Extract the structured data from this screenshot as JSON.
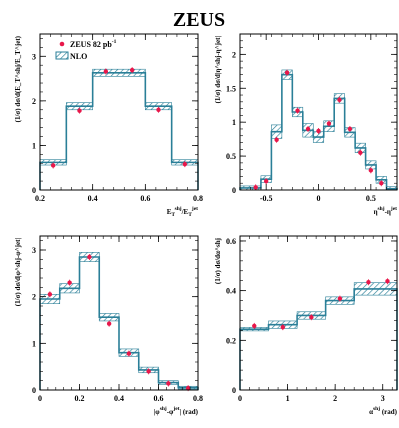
{
  "title": "ZEUS",
  "legend": {
    "data_label": "ZEUS 82 pb",
    "data_sup": "-1",
    "nlo_label": "NLO"
  },
  "colors": {
    "nlo_line": "#2a7f98",
    "nlo_hatch": "#2a7f98",
    "data_marker": "#e8174a",
    "axis": "#000000"
  },
  "chart_data": [
    {
      "type": "step-with-points",
      "xlabel": {
        "main": "E",
        "sub1": "T",
        "sup1": "shj",
        "slash": "/E",
        "sub2": "T",
        "sup2": "jet"
      },
      "ylabel": "(1/σ) dσ/d(E_T^shj/E_T^jet)",
      "xlim": [
        0.2,
        0.8
      ],
      "ylim": [
        0,
        3.5
      ],
      "xticks": [
        0.2,
        0.4,
        0.6,
        0.8
      ],
      "yticks": [
        0,
        1,
        2,
        3
      ],
      "xtick_labels": [
        "0.2",
        "0.4",
        "0.6",
        "0.8"
      ],
      "ytick_labels": [
        "0",
        "1",
        "2",
        "3"
      ],
      "nlo_bins": [
        [
          0.2,
          0.3,
          0.62,
          0.56,
          0.68
        ],
        [
          0.3,
          0.4,
          1.88,
          1.8,
          1.96
        ],
        [
          0.4,
          0.6,
          2.63,
          2.55,
          2.71
        ],
        [
          0.6,
          0.7,
          1.88,
          1.8,
          1.96
        ],
        [
          0.7,
          0.8,
          0.62,
          0.56,
          0.68
        ]
      ],
      "data_points": [
        [
          0.25,
          0.55
        ],
        [
          0.35,
          1.78
        ],
        [
          0.45,
          2.66
        ],
        [
          0.55,
          2.69
        ],
        [
          0.65,
          1.8
        ],
        [
          0.75,
          0.58
        ]
      ]
    },
    {
      "type": "step-with-points",
      "xlabel": {
        "main": "η",
        "sup1": "shj",
        "mid": "-η",
        "sup2": "jet"
      },
      "ylabel": "(1/σ) dσ/d|η^shj-η^jet|",
      "xlim": [
        -0.75,
        0.75
      ],
      "ylim": [
        0,
        2.3
      ],
      "xticks": [
        -0.5,
        0,
        0.5
      ],
      "yticks": [
        0,
        0.5,
        1,
        1.5,
        2
      ],
      "xtick_labels": [
        "-0.5",
        "0",
        "0.5"
      ],
      "ytick_labels": [
        "0",
        "0.5",
        "1",
        "1.5",
        "2"
      ],
      "nlo_bins": [
        [
          -0.75,
          -0.55,
          0.03,
          0.0,
          0.06
        ],
        [
          -0.55,
          -0.45,
          0.16,
          0.11,
          0.21
        ],
        [
          -0.45,
          -0.35,
          0.86,
          0.76,
          0.96
        ],
        [
          -0.35,
          -0.25,
          1.7,
          1.63,
          1.77
        ],
        [
          -0.25,
          -0.15,
          1.15,
          1.08,
          1.22
        ],
        [
          -0.15,
          -0.05,
          0.88,
          0.78,
          0.98
        ],
        [
          -0.05,
          0.05,
          0.78,
          0.7,
          0.86
        ],
        [
          0.05,
          0.15,
          0.94,
          0.86,
          1.02
        ],
        [
          0.15,
          0.25,
          1.35,
          1.28,
          1.42
        ],
        [
          0.25,
          0.35,
          0.85,
          0.78,
          0.92
        ],
        [
          0.35,
          0.45,
          0.62,
          0.55,
          0.69
        ],
        [
          0.45,
          0.55,
          0.37,
          0.31,
          0.43
        ],
        [
          0.55,
          0.65,
          0.15,
          0.1,
          0.2
        ],
        [
          0.65,
          0.75,
          0.02,
          0.0,
          0.05
        ]
      ],
      "data_points": [
        [
          -0.6,
          0.04
        ],
        [
          -0.5,
          0.13
        ],
        [
          -0.4,
          0.74
        ],
        [
          -0.3,
          1.73
        ],
        [
          -0.2,
          1.17
        ],
        [
          -0.1,
          0.9
        ],
        [
          0.0,
          0.87
        ],
        [
          0.1,
          0.98
        ],
        [
          0.2,
          1.33
        ],
        [
          0.3,
          0.9
        ],
        [
          0.4,
          0.55
        ],
        [
          0.5,
          0.29
        ],
        [
          0.6,
          0.1
        ]
      ]
    },
    {
      "type": "step-with-points",
      "xlabel": {
        "main": "|φ",
        "sup1": "shj",
        "mid": "-φ",
        "sup2": "jet",
        "tail": "| (rad)"
      },
      "ylabel": "(1/σ) dσ/d|φ^shj-φ^jet|",
      "xlim": [
        0,
        0.8
      ],
      "ylim": [
        0,
        3.3
      ],
      "xticks": [
        0,
        0.2,
        0.4,
        0.6,
        0.8
      ],
      "yticks": [
        0,
        1,
        2,
        3
      ],
      "xtick_labels": [
        "0",
        "0.2",
        "0.4",
        "0.6",
        "0.8"
      ],
      "ytick_labels": [
        "0",
        "1",
        "2",
        "3"
      ],
      "nlo_bins": [
        [
          0,
          0.1,
          1.95,
          1.85,
          2.05
        ],
        [
          0.1,
          0.2,
          2.18,
          2.08,
          2.28
        ],
        [
          0.2,
          0.3,
          2.85,
          2.75,
          2.95
        ],
        [
          0.3,
          0.4,
          1.56,
          1.48,
          1.64
        ],
        [
          0.4,
          0.5,
          0.8,
          0.72,
          0.88
        ],
        [
          0.5,
          0.6,
          0.43,
          0.37,
          0.49
        ],
        [
          0.6,
          0.7,
          0.16,
          0.12,
          0.2
        ],
        [
          0.7,
          0.8,
          0.05,
          0.02,
          0.08
        ]
      ],
      "data_points": [
        [
          0.05,
          2.05
        ],
        [
          0.15,
          2.3
        ],
        [
          0.25,
          2.85
        ],
        [
          0.35,
          1.42
        ],
        [
          0.45,
          0.78
        ],
        [
          0.55,
          0.4
        ],
        [
          0.65,
          0.14
        ],
        [
          0.75,
          0.04
        ]
      ]
    },
    {
      "type": "step-with-points",
      "xlabel": {
        "main": "α",
        "sup1": "shj",
        "tail": " (rad)"
      },
      "ylabel": "(1/σ) dσ/dα^shj",
      "xlim": [
        0,
        3.3
      ],
      "ylim": [
        0,
        0.62
      ],
      "xticks": [
        0,
        1,
        2,
        3
      ],
      "yticks": [
        0,
        0.2,
        0.4,
        0.6
      ],
      "xtick_labels": [
        "0",
        "1",
        "2",
        "3"
      ],
      "ytick_labels": [
        "0",
        "0.2",
        "0.4",
        "0.6"
      ],
      "nlo_bins": [
        [
          0,
          0.6,
          0.245,
          0.238,
          0.252
        ],
        [
          0.6,
          1.2,
          0.263,
          0.248,
          0.278
        ],
        [
          1.2,
          1.8,
          0.3,
          0.285,
          0.315
        ],
        [
          1.8,
          2.4,
          0.36,
          0.345,
          0.375
        ],
        [
          2.4,
          3.3,
          0.407,
          0.382,
          0.432
        ]
      ],
      "data_points": [
        [
          0.3,
          0.258
        ],
        [
          0.9,
          0.253
        ],
        [
          1.5,
          0.293
        ],
        [
          2.1,
          0.368
        ],
        [
          2.7,
          0.434
        ],
        [
          3.1,
          0.438
        ]
      ]
    }
  ]
}
